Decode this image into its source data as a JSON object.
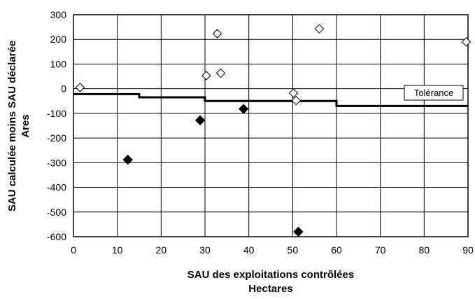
{
  "chart_data": {
    "type": "scatter",
    "title": "",
    "xlabel": "SAU des exploitations contrôlées",
    "xunit": "Hectares",
    "ylabel": "SAU calculée moins SAU déclarée",
    "yunit": "Ares",
    "xlim": [
      0,
      90
    ],
    "ylim": [
      -600,
      300
    ],
    "xticks": [
      0,
      10,
      20,
      30,
      40,
      50,
      60,
      70,
      80,
      90
    ],
    "yticks": [
      300,
      200,
      100,
      0,
      -100,
      -200,
      -300,
      -400,
      -500,
      -600
    ],
    "grid": true,
    "series": [
      {
        "marker": "hollow-diamond",
        "color": "#000000",
        "points": [
          {
            "x": 1.5,
            "y": 5
          },
          {
            "x": 30.3,
            "y": 53
          },
          {
            "x": 32.8,
            "y": 223
          },
          {
            "x": 33.6,
            "y": 63
          },
          {
            "x": 50.2,
            "y": -18
          },
          {
            "x": 50.8,
            "y": -48
          },
          {
            "x": 56.1,
            "y": 243
          },
          {
            "x": 89.6,
            "y": 190
          }
        ]
      },
      {
        "marker": "filled-diamond",
        "color": "#000000",
        "points": [
          {
            "x": 12.4,
            "y": -288
          },
          {
            "x": 28.9,
            "y": -128
          },
          {
            "x": 38.8,
            "y": -82
          },
          {
            "x": 51.3,
            "y": -580
          }
        ]
      }
    ],
    "tolerance_line": {
      "label": "Tolérance",
      "points": [
        [
          0,
          -22
        ],
        [
          15,
          -22
        ],
        [
          15,
          -35
        ],
        [
          30,
          -35
        ],
        [
          30,
          -50
        ],
        [
          60,
          -50
        ],
        [
          60,
          -70
        ],
        [
          90,
          -70
        ]
      ]
    }
  }
}
